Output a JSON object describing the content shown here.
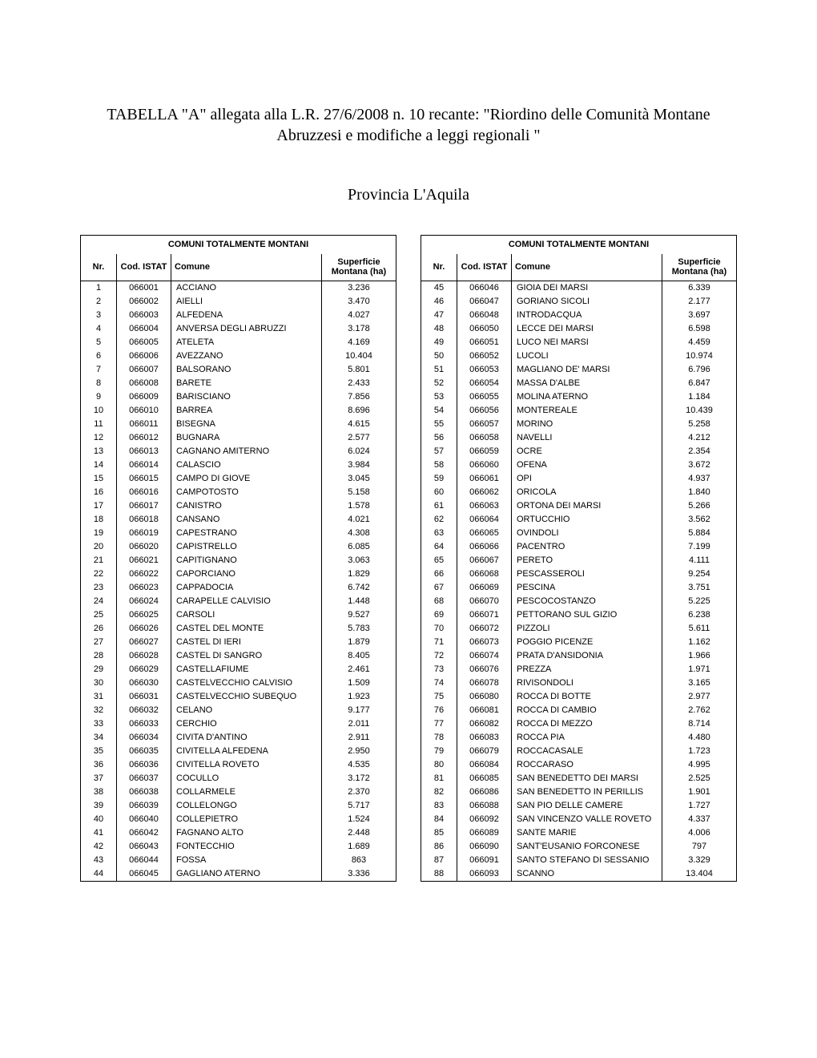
{
  "title": "TABELLA \"A\" allegata alla L.R. 27/6/2008 n. 10 recante:  \"Riordino delle Comunità Montane Abruzzesi e modifiche a leggi regionali \"",
  "subtitle": "Provincia L'Aquila",
  "table_caption": "COMUNI TOTALMENTE MONTANI",
  "columns": {
    "nr": "Nr.",
    "cod": "Cod. ISTAT",
    "comune": "Comune",
    "superficie": "Superficie Montana (ha)"
  },
  "rows_left": [
    {
      "nr": "1",
      "cod": "066001",
      "com": "ACCIANO",
      "sup": "3.236"
    },
    {
      "nr": "2",
      "cod": "066002",
      "com": "AIELLI",
      "sup": "3.470"
    },
    {
      "nr": "3",
      "cod": "066003",
      "com": "ALFEDENA",
      "sup": "4.027"
    },
    {
      "nr": "4",
      "cod": "066004",
      "com": "ANVERSA DEGLI ABRUZZI",
      "sup": "3.178"
    },
    {
      "nr": "5",
      "cod": "066005",
      "com": "ATELETA",
      "sup": "4.169"
    },
    {
      "nr": "6",
      "cod": "066006",
      "com": "AVEZZANO",
      "sup": "10.404"
    },
    {
      "nr": "7",
      "cod": "066007",
      "com": "BALSORANO",
      "sup": "5.801"
    },
    {
      "nr": "8",
      "cod": "066008",
      "com": "BARETE",
      "sup": "2.433"
    },
    {
      "nr": "9",
      "cod": "066009",
      "com": "BARISCIANO",
      "sup": "7.856"
    },
    {
      "nr": "10",
      "cod": "066010",
      "com": "BARREA",
      "sup": "8.696"
    },
    {
      "nr": "11",
      "cod": "066011",
      "com": "BISEGNA",
      "sup": "4.615"
    },
    {
      "nr": "12",
      "cod": "066012",
      "com": "BUGNARA",
      "sup": "2.577"
    },
    {
      "nr": "13",
      "cod": "066013",
      "com": "CAGNANO AMITERNO",
      "sup": "6.024"
    },
    {
      "nr": "14",
      "cod": "066014",
      "com": "CALASCIO",
      "sup": "3.984"
    },
    {
      "nr": "15",
      "cod": "066015",
      "com": "CAMPO DI GIOVE",
      "sup": "3.045"
    },
    {
      "nr": "16",
      "cod": "066016",
      "com": "CAMPOTOSTO",
      "sup": "5.158"
    },
    {
      "nr": "17",
      "cod": "066017",
      "com": "CANISTRO",
      "sup": "1.578"
    },
    {
      "nr": "18",
      "cod": "066018",
      "com": "CANSANO",
      "sup": "4.021"
    },
    {
      "nr": "19",
      "cod": "066019",
      "com": "CAPESTRANO",
      "sup": "4.308"
    },
    {
      "nr": "20",
      "cod": "066020",
      "com": "CAPISTRELLO",
      "sup": "6.085"
    },
    {
      "nr": "21",
      "cod": "066021",
      "com": "CAPITIGNANO",
      "sup": "3.063"
    },
    {
      "nr": "22",
      "cod": "066022",
      "com": "CAPORCIANO",
      "sup": "1.829"
    },
    {
      "nr": "23",
      "cod": "066023",
      "com": "CAPPADOCIA",
      "sup": "6.742"
    },
    {
      "nr": "24",
      "cod": "066024",
      "com": "CARAPELLE CALVISIO",
      "sup": "1.448"
    },
    {
      "nr": "25",
      "cod": "066025",
      "com": "CARSOLI",
      "sup": "9.527"
    },
    {
      "nr": "26",
      "cod": "066026",
      "com": "CASTEL DEL MONTE",
      "sup": "5.783"
    },
    {
      "nr": "27",
      "cod": "066027",
      "com": "CASTEL DI IERI",
      "sup": "1.879"
    },
    {
      "nr": "28",
      "cod": "066028",
      "com": "CASTEL DI SANGRO",
      "sup": "8.405"
    },
    {
      "nr": "29",
      "cod": "066029",
      "com": "CASTELLAFIUME",
      "sup": "2.461"
    },
    {
      "nr": "30",
      "cod": "066030",
      "com": "CASTELVECCHIO CALVISIO",
      "sup": "1.509"
    },
    {
      "nr": "31",
      "cod": "066031",
      "com": "CASTELVECCHIO SUBEQUO",
      "sup": "1.923"
    },
    {
      "nr": "32",
      "cod": "066032",
      "com": "CELANO",
      "sup": "9.177"
    },
    {
      "nr": "33",
      "cod": "066033",
      "com": "CERCHIO",
      "sup": "2.011"
    },
    {
      "nr": "34",
      "cod": "066034",
      "com": "CIVITA D'ANTINO",
      "sup": "2.911"
    },
    {
      "nr": "35",
      "cod": "066035",
      "com": "CIVITELLA ALFEDENA",
      "sup": "2.950"
    },
    {
      "nr": "36",
      "cod": "066036",
      "com": "CIVITELLA ROVETO",
      "sup": "4.535"
    },
    {
      "nr": "37",
      "cod": "066037",
      "com": "COCULLO",
      "sup": "3.172"
    },
    {
      "nr": "38",
      "cod": "066038",
      "com": "COLLARMELE",
      "sup": "2.370"
    },
    {
      "nr": "39",
      "cod": "066039",
      "com": "COLLELONGO",
      "sup": "5.717"
    },
    {
      "nr": "40",
      "cod": "066040",
      "com": "COLLEPIETRO",
      "sup": "1.524"
    },
    {
      "nr": "41",
      "cod": "066042",
      "com": "FAGNANO ALTO",
      "sup": "2.448"
    },
    {
      "nr": "42",
      "cod": "066043",
      "com": "FONTECCHIO",
      "sup": "1.689"
    },
    {
      "nr": "43",
      "cod": "066044",
      "com": "FOSSA",
      "sup": "863"
    },
    {
      "nr": "44",
      "cod": "066045",
      "com": "GAGLIANO ATERNO",
      "sup": "3.336"
    }
  ],
  "rows_right": [
    {
      "nr": "45",
      "cod": "066046",
      "com": "GIOIA DEI MARSI",
      "sup": "6.339"
    },
    {
      "nr": "46",
      "cod": "066047",
      "com": "GORIANO SICOLI",
      "sup": "2.177"
    },
    {
      "nr": "47",
      "cod": "066048",
      "com": "INTRODACQUA",
      "sup": "3.697"
    },
    {
      "nr": "48",
      "cod": "066050",
      "com": "LECCE DEI MARSI",
      "sup": "6.598"
    },
    {
      "nr": "49",
      "cod": "066051",
      "com": "LUCO NEI MARSI",
      "sup": "4.459"
    },
    {
      "nr": "50",
      "cod": "066052",
      "com": "LUCOLI",
      "sup": "10.974"
    },
    {
      "nr": "51",
      "cod": "066053",
      "com": "MAGLIANO DE' MARSI",
      "sup": "6.796"
    },
    {
      "nr": "52",
      "cod": "066054",
      "com": "MASSA D'ALBE",
      "sup": "6.847"
    },
    {
      "nr": "53",
      "cod": "066055",
      "com": "MOLINA ATERNO",
      "sup": "1.184"
    },
    {
      "nr": "54",
      "cod": "066056",
      "com": "MONTEREALE",
      "sup": "10.439"
    },
    {
      "nr": "55",
      "cod": "066057",
      "com": "MORINO",
      "sup": "5.258"
    },
    {
      "nr": "56",
      "cod": "066058",
      "com": "NAVELLI",
      "sup": "4.212"
    },
    {
      "nr": "57",
      "cod": "066059",
      "com": "OCRE",
      "sup": "2.354"
    },
    {
      "nr": "58",
      "cod": "066060",
      "com": "OFENA",
      "sup": "3.672"
    },
    {
      "nr": "59",
      "cod": "066061",
      "com": "OPI",
      "sup": "4.937"
    },
    {
      "nr": "60",
      "cod": "066062",
      "com": "ORICOLA",
      "sup": "1.840"
    },
    {
      "nr": "61",
      "cod": "066063",
      "com": "ORTONA DEI MARSI",
      "sup": "5.266"
    },
    {
      "nr": "62",
      "cod": "066064",
      "com": "ORTUCCHIO",
      "sup": "3.562"
    },
    {
      "nr": "63",
      "cod": "066065",
      "com": "OVINDOLI",
      "sup": "5.884"
    },
    {
      "nr": "64",
      "cod": "066066",
      "com": "PACENTRO",
      "sup": "7.199"
    },
    {
      "nr": "65",
      "cod": "066067",
      "com": "PERETO",
      "sup": "4.111"
    },
    {
      "nr": "66",
      "cod": "066068",
      "com": "PESCASSEROLI",
      "sup": "9.254"
    },
    {
      "nr": "67",
      "cod": "066069",
      "com": "PESCINA",
      "sup": "3.751"
    },
    {
      "nr": "68",
      "cod": "066070",
      "com": "PESCOCOSTANZO",
      "sup": "5.225"
    },
    {
      "nr": "69",
      "cod": "066071",
      "com": "PETTORANO SUL GIZIO",
      "sup": "6.238"
    },
    {
      "nr": "70",
      "cod": "066072",
      "com": "PIZZOLI",
      "sup": "5.611"
    },
    {
      "nr": "71",
      "cod": "066073",
      "com": "POGGIO PICENZE",
      "sup": "1.162"
    },
    {
      "nr": "72",
      "cod": "066074",
      "com": "PRATA D'ANSIDONIA",
      "sup": "1.966"
    },
    {
      "nr": "73",
      "cod": "066076",
      "com": "PREZZA",
      "sup": "1.971"
    },
    {
      "nr": "74",
      "cod": "066078",
      "com": "RIVISONDOLI",
      "sup": "3.165"
    },
    {
      "nr": "75",
      "cod": "066080",
      "com": "ROCCA DI BOTTE",
      "sup": "2.977"
    },
    {
      "nr": "76",
      "cod": "066081",
      "com": "ROCCA DI CAMBIO",
      "sup": "2.762"
    },
    {
      "nr": "77",
      "cod": "066082",
      "com": "ROCCA DI MEZZO",
      "sup": "8.714"
    },
    {
      "nr": "78",
      "cod": "066083",
      "com": "ROCCA PIA",
      "sup": "4.480"
    },
    {
      "nr": "79",
      "cod": "066079",
      "com": "ROCCACASALE",
      "sup": "1.723"
    },
    {
      "nr": "80",
      "cod": "066084",
      "com": "ROCCARASO",
      "sup": "4.995"
    },
    {
      "nr": "81",
      "cod": "066085",
      "com": "SAN BENEDETTO DEI MARSI",
      "sup": "2.525"
    },
    {
      "nr": "82",
      "cod": "066086",
      "com": "SAN BENEDETTO IN PERILLIS",
      "sup": "1.901"
    },
    {
      "nr": "83",
      "cod": "066088",
      "com": "SAN PIO DELLE CAMERE",
      "sup": "1.727"
    },
    {
      "nr": "84",
      "cod": "066092",
      "com": "SAN VINCENZO VALLE ROVETO",
      "sup": "4.337"
    },
    {
      "nr": "85",
      "cod": "066089",
      "com": "SANTE MARIE",
      "sup": "4.006"
    },
    {
      "nr": "86",
      "cod": "066090",
      "com": "SANT'EUSANIO FORCONESE",
      "sup": "797"
    },
    {
      "nr": "87",
      "cod": "066091",
      "com": "SANTO STEFANO DI SESSANIO",
      "sup": "3.329"
    },
    {
      "nr": "88",
      "cod": "066093",
      "com": "SCANNO",
      "sup": "13.404"
    }
  ]
}
